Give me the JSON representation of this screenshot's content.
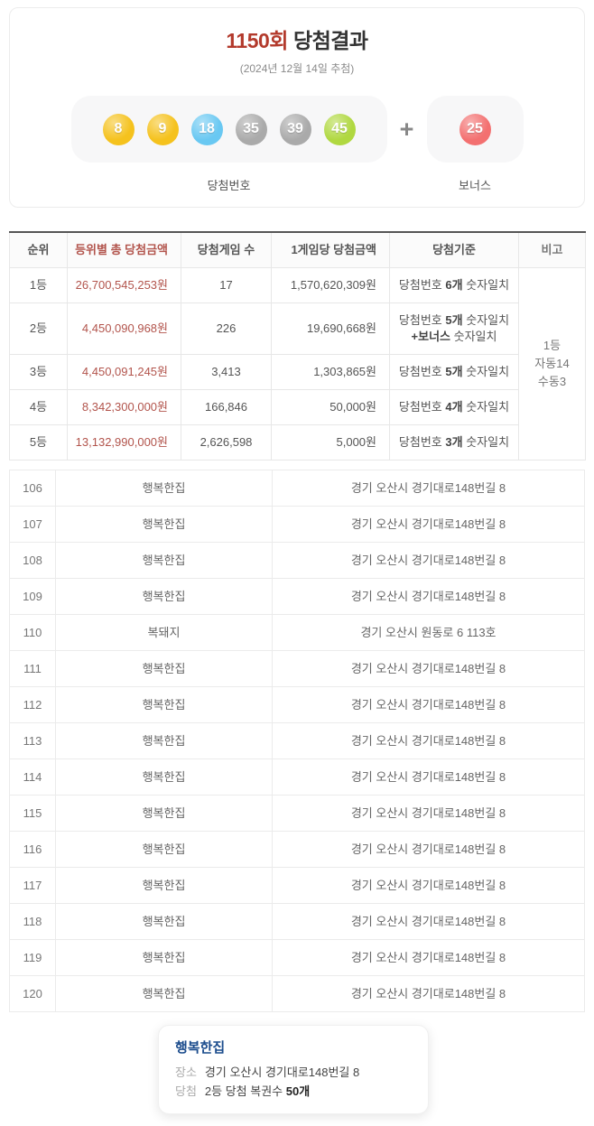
{
  "header": {
    "round": "1150회",
    "title_suffix": "당첨결과",
    "subtitle": "(2024년 12월 14일 추첨)",
    "plus": "+",
    "winning_label": "당첨번호",
    "bonus_label": "보너스",
    "balls": [
      {
        "number": "8",
        "color": "#f5c21d"
      },
      {
        "number": "9",
        "color": "#f5c21d"
      },
      {
        "number": "18",
        "color": "#69c8f2"
      },
      {
        "number": "35",
        "color": "#aaaaaa"
      },
      {
        "number": "39",
        "color": "#aaaaaa"
      },
      {
        "number": "45",
        "color": "#b0d840"
      }
    ],
    "bonus_ball": {
      "number": "25",
      "color": "#f37070"
    }
  },
  "prize_table": {
    "headers": [
      "순위",
      "등위별 총 당첨금액",
      "당첨게임 수",
      "1게임당 당첨금액",
      "당첨기준",
      "비고"
    ],
    "rows": [
      {
        "rank": "1등",
        "total": "26,700,545,253원",
        "games": "17",
        "per_game": "1,570,620,309원",
        "criteria": {
          "pre": "당첨번호",
          "count": "6개",
          "post": "숫자일치",
          "line2_bold": "",
          "line2_post": ""
        }
      },
      {
        "rank": "2등",
        "total": "4,450,090,968원",
        "games": "226",
        "per_game": "19,690,668원",
        "criteria": {
          "pre": "당첨번호",
          "count": "5개",
          "post": "숫자일치",
          "line2_bold": "+보너스",
          "line2_post": "숫자일치"
        }
      },
      {
        "rank": "3등",
        "total": "4,450,091,245원",
        "games": "3,413",
        "per_game": "1,303,865원",
        "criteria": {
          "pre": "당첨번호",
          "count": "5개",
          "post": "숫자일치",
          "line2_bold": "",
          "line2_post": ""
        }
      },
      {
        "rank": "4등",
        "total": "8,342,300,000원",
        "games": "166,846",
        "per_game": "50,000원",
        "criteria": {
          "pre": "당첨번호",
          "count": "4개",
          "post": "숫자일치",
          "line2_bold": "",
          "line2_post": ""
        }
      },
      {
        "rank": "5등",
        "total": "13,132,990,000원",
        "games": "2,626,598",
        "per_game": "5,000원",
        "criteria": {
          "pre": "당첨번호",
          "count": "3개",
          "post": "숫자일치",
          "line2_bold": "",
          "line2_post": ""
        }
      }
    ],
    "note_lines": [
      "1등",
      "자동14",
      "수동3"
    ]
  },
  "store_table": {
    "rows": [
      {
        "no": "106",
        "name": "행복한집",
        "address": "경기 오산시 경기대로148번길 8"
      },
      {
        "no": "107",
        "name": "행복한집",
        "address": "경기 오산시 경기대로148번길 8"
      },
      {
        "no": "108",
        "name": "행복한집",
        "address": "경기 오산시 경기대로148번길 8"
      },
      {
        "no": "109",
        "name": "행복한집",
        "address": "경기 오산시 경기대로148번길 8"
      },
      {
        "no": "110",
        "name": "복돼지",
        "address": "경기 오산시 원동로 6 113호"
      },
      {
        "no": "111",
        "name": "행복한집",
        "address": "경기 오산시 경기대로148번길 8"
      },
      {
        "no": "112",
        "name": "행복한집",
        "address": "경기 오산시 경기대로148번길 8"
      },
      {
        "no": "113",
        "name": "행복한집",
        "address": "경기 오산시 경기대로148번길 8"
      },
      {
        "no": "114",
        "name": "행복한집",
        "address": "경기 오산시 경기대로148번길 8"
      },
      {
        "no": "115",
        "name": "행복한집",
        "address": "경기 오산시 경기대로148번길 8"
      },
      {
        "no": "116",
        "name": "행복한집",
        "address": "경기 오산시 경기대로148번길 8"
      },
      {
        "no": "117",
        "name": "행복한집",
        "address": "경기 오산시 경기대로148번길 8"
      },
      {
        "no": "118",
        "name": "행복한집",
        "address": "경기 오산시 경기대로148번길 8"
      },
      {
        "no": "119",
        "name": "행복한집",
        "address": "경기 오산시 경기대로148번길 8"
      },
      {
        "no": "120",
        "name": "행복한집",
        "address": "경기 오산시 경기대로148번길 8"
      }
    ]
  },
  "tooltip": {
    "title": "행복한집",
    "place_label": "장소",
    "place_value": "경기 오산시 경기대로148번길 8",
    "win_label": "당첨",
    "win_value_pre": "2등 당첨 복권수",
    "win_value_bold": "50개"
  },
  "colors": {
    "round_red": "#b33a2c",
    "amount_red": "#b2544c",
    "tooltip_title_blue": "#1a4b8c"
  }
}
